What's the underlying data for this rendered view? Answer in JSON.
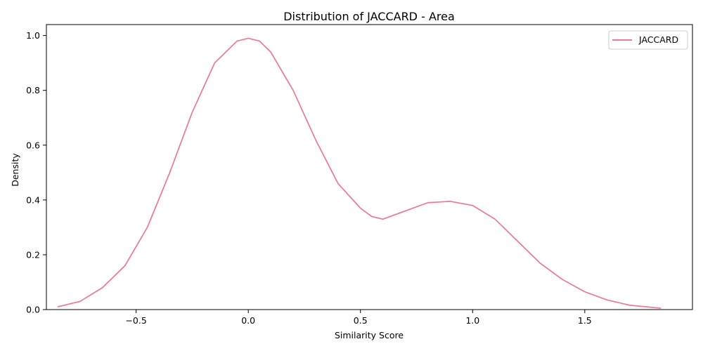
{
  "chart_data": {
    "type": "line",
    "title": "Distribution of JACCARD - Area",
    "xlabel": "Similarity Score",
    "ylabel": "Density",
    "xlim": [
      -0.9,
      1.98
    ],
    "ylim": [
      0,
      1.04
    ],
    "xticks": [
      -0.5,
      0.0,
      0.5,
      1.0,
      1.5
    ],
    "xtick_labels": [
      "−0.5",
      "0.0",
      "0.5",
      "1.0",
      "1.5"
    ],
    "yticks": [
      0.0,
      0.2,
      0.4,
      0.6,
      0.8,
      1.0
    ],
    "ytick_labels": [
      "0.0",
      "0.2",
      "0.4",
      "0.6",
      "0.8",
      "1.0"
    ],
    "grid": false,
    "legend_position": "top-right",
    "series": [
      {
        "name": "JACCARD",
        "color": "#f0788c",
        "x": [
          -0.85,
          -0.75,
          -0.65,
          -0.55,
          -0.45,
          -0.35,
          -0.25,
          -0.15,
          -0.05,
          0.0,
          0.05,
          0.1,
          0.2,
          0.3,
          0.4,
          0.5,
          0.55,
          0.6,
          0.7,
          0.8,
          0.9,
          1.0,
          1.1,
          1.2,
          1.3,
          1.4,
          1.5,
          1.6,
          1.7,
          1.84
        ],
        "y": [
          0.01,
          0.03,
          0.08,
          0.16,
          0.3,
          0.5,
          0.72,
          0.9,
          0.98,
          0.99,
          0.98,
          0.94,
          0.8,
          0.62,
          0.46,
          0.37,
          0.34,
          0.33,
          0.36,
          0.39,
          0.395,
          0.38,
          0.33,
          0.25,
          0.17,
          0.11,
          0.065,
          0.035,
          0.016,
          0.005
        ]
      }
    ]
  }
}
